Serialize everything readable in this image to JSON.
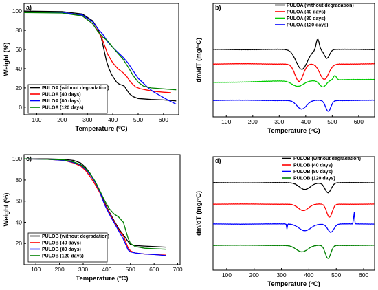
{
  "chart_data": [
    {
      "panel": "a)",
      "type": "line",
      "xlabel": "Temperature (ºC)",
      "ylabel": "Weight (%)",
      "xlim": [
        50,
        660
      ],
      "ylim": [
        -8,
        108
      ],
      "xticks": [
        100,
        200,
        300,
        400,
        500,
        600
      ],
      "yticks": [
        0,
        20,
        40,
        60,
        80,
        100
      ],
      "legend_position": "bottom-left",
      "series": [
        {
          "name": "PULOA (without degradation)",
          "color": "#000000",
          "x": [
            50,
            200,
            280,
            320,
            340,
            355,
            365,
            375,
            385,
            395,
            405,
            415,
            425,
            435,
            445,
            455,
            465,
            480,
            500,
            550,
            600,
            650
          ],
          "y": [
            100,
            99.5,
            97,
            90,
            82,
            72,
            60,
            48,
            40,
            34,
            30,
            26,
            24,
            23,
            22,
            18,
            14,
            11,
            9,
            8,
            7.5,
            6.5
          ]
        },
        {
          "name": "PULOA (40 days)",
          "color": "#ff0000",
          "x": [
            50,
            200,
            280,
            320,
            340,
            360,
            380,
            400,
            420,
            440,
            455,
            470,
            490,
            510,
            530,
            560,
            600,
            630
          ],
          "y": [
            99,
            98.5,
            95,
            87,
            80,
            70,
            55,
            46,
            40,
            36,
            32,
            26,
            21,
            19,
            18,
            16.5,
            15.5,
            15
          ]
        },
        {
          "name": "PULOA (80 days)",
          "color": "#0000ff",
          "x": [
            50,
            200,
            280,
            320,
            340,
            360,
            380,
            400,
            420,
            440,
            460,
            480,
            500,
            520,
            540,
            560,
            580,
            600,
            620,
            650
          ],
          "y": [
            99,
            98.5,
            96,
            89,
            82,
            76,
            68,
            62,
            57,
            52,
            46,
            38,
            30,
            25,
            20,
            16,
            13,
            10,
            7,
            3
          ]
        },
        {
          "name": "PULOA (120 days)",
          "color": "#008000",
          "x": [
            50,
            200,
            280,
            320,
            340,
            360,
            380,
            400,
            420,
            440,
            460,
            480,
            500,
            520,
            550,
            600,
            650
          ],
          "y": [
            98.5,
            98,
            95,
            87,
            79,
            73,
            69,
            62,
            56,
            50,
            42,
            33,
            26,
            22,
            20,
            19,
            18
          ]
        }
      ]
    },
    {
      "panel": "b)",
      "type": "line",
      "xlabel": "Temperature (°C)",
      "ylabel": "dm/dT (mg/°C)",
      "xlim": [
        50,
        660
      ],
      "xticks": [
        100,
        200,
        300,
        400,
        500,
        600
      ],
      "legend_position": "top-right",
      "series": [
        {
          "name": "PULOA (without degradation)",
          "color": "#000000"
        },
        {
          "name": "PULOA (40 days)",
          "color": "#ff0000"
        },
        {
          "name": "PULOA (80 days)",
          "color": "#00cc00"
        },
        {
          "name": "PULOA (120 days)",
          "color": "#0000ff"
        }
      ]
    },
    {
      "panel": "c)",
      "type": "line",
      "xlabel": "Temperature (ºC)",
      "ylabel": "Weight (%)",
      "xlim": [
        50,
        710
      ],
      "ylim": [
        0,
        104
      ],
      "xticks": [
        100,
        200,
        300,
        400,
        500,
        600,
        700
      ],
      "yticks": [
        20,
        40,
        60,
        80,
        100
      ],
      "legend_position": "bottom-left",
      "series": [
        {
          "name": "PULOB (without degradation)",
          "color": "#000000",
          "x": [
            50,
            150,
            220,
            260,
            290,
            310,
            330,
            350,
            370,
            390,
            410,
            430,
            450,
            470,
            490,
            500,
            520,
            560,
            600,
            650
          ],
          "y": [
            100,
            100,
            99.5,
            98.5,
            96,
            92,
            86,
            78,
            69,
            59,
            50,
            42,
            34,
            28,
            22,
            19,
            18,
            17.5,
            17,
            16.5
          ]
        },
        {
          "name": "PULOB (40 days)",
          "color": "#ff0000",
          "x": [
            50,
            150,
            220,
            260,
            290,
            310,
            330,
            350,
            370,
            390,
            410,
            430,
            450,
            470,
            490,
            500,
            520,
            560,
            600,
            650
          ],
          "y": [
            100,
            99.5,
            98.5,
            96,
            93,
            89,
            83,
            76,
            68,
            58,
            49,
            41,
            33,
            27,
            16,
            13,
            11,
            10,
            9.5,
            9
          ]
        },
        {
          "name": "PULOB (80 days)",
          "color": "#0000ff",
          "x": [
            50,
            150,
            220,
            260,
            290,
            310,
            330,
            350,
            370,
            390,
            410,
            430,
            450,
            470,
            490,
            500,
            520,
            560,
            600,
            650
          ],
          "y": [
            100,
            99.5,
            98.5,
            96.5,
            94,
            90,
            85,
            78,
            69,
            57,
            48,
            40,
            32,
            24,
            14,
            12,
            11,
            10,
            9.5,
            8.5
          ]
        },
        {
          "name": "PULOB (120 days)",
          "color": "#008000",
          "x": [
            50,
            150,
            220,
            260,
            290,
            310,
            330,
            350,
            370,
            390,
            410,
            430,
            450,
            470,
            490,
            500,
            520,
            560,
            600,
            650
          ],
          "y": [
            100,
            99.5,
            99,
            97,
            94.5,
            91,
            86,
            79,
            70,
            61,
            53,
            48,
            45,
            40,
            25,
            20,
            17,
            15.5,
            15,
            14.5
          ]
        }
      ]
    },
    {
      "panel": "d)",
      "type": "line",
      "xlabel": "Temperature (°C)",
      "ylabel": "dm/dT (mg/°C)",
      "xlim": [
        50,
        640
      ],
      "xticks": [
        100,
        200,
        300,
        400,
        500,
        600
      ],
      "legend_position": "top-right",
      "series": [
        {
          "name": "PULOB (without degradation)",
          "color": "#000000"
        },
        {
          "name": "PULOB (40 days)",
          "color": "#ff0000"
        },
        {
          "name": "PULOB (80 days)",
          "color": "#0000ff"
        },
        {
          "name": "PULOB (120 days)",
          "color": "#008000"
        }
      ]
    }
  ]
}
